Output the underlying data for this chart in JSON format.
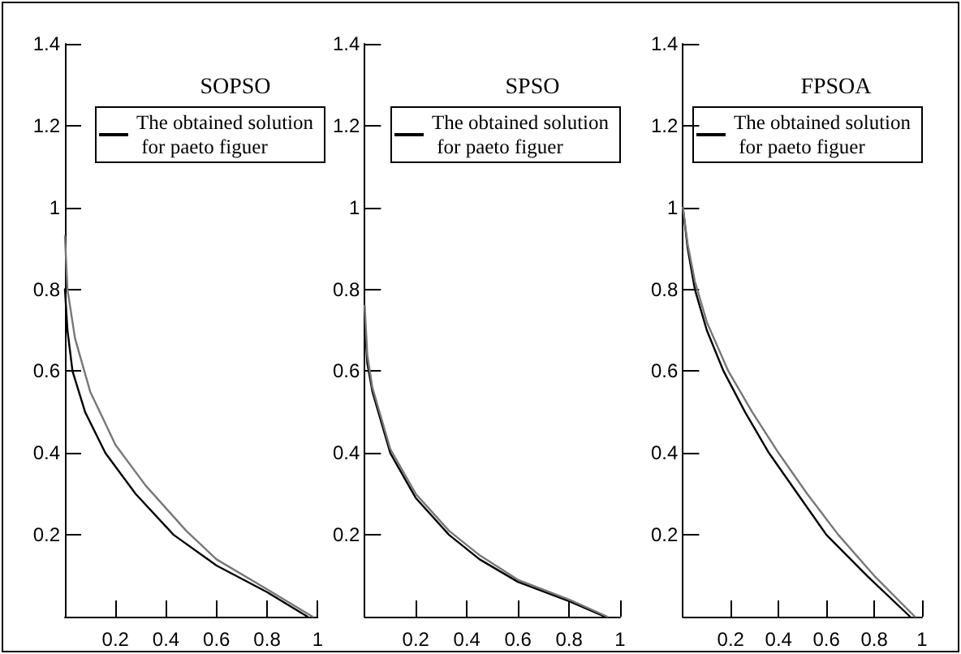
{
  "chart_data": [
    {
      "type": "line",
      "title": "SOPSO",
      "legend": "top right",
      "marker": "none",
      "line_style": "solid",
      "grid": false,
      "xlim": [
        0,
        1
      ],
      "ylim": [
        0,
        1.4
      ],
      "xticks": [
        0.2,
        0.4,
        0.6,
        0.8,
        1
      ],
      "yticks": [
        0.2,
        0.4,
        0.6,
        0.8,
        1,
        1.2,
        1.4
      ],
      "series": [
        {
          "name": "The obtained solution for paeto figuer",
          "color": "#000000",
          "x": [
            0,
            0.01,
            0.03,
            0.08,
            0.16,
            0.28,
            0.43,
            0.6,
            0.8,
            0.96
          ],
          "values": [
            0.8,
            0.7,
            0.6,
            0.5,
            0.4,
            0.3,
            0.2,
            0.125,
            0.06,
            0
          ]
        },
        {
          "color": "#777777",
          "x": [
            0,
            0.01,
            0.04,
            0.1,
            0.2,
            0.32,
            0.48,
            0.6,
            0.8,
            0.98
          ],
          "values": [
            0.93,
            0.8,
            0.68,
            0.55,
            0.42,
            0.32,
            0.21,
            0.14,
            0.067,
            0
          ]
        }
      ]
    },
    {
      "type": "line",
      "title": "SPSO",
      "legend": "top right",
      "marker": "none",
      "line_style": "solid",
      "grid": false,
      "xlim": [
        0,
        1
      ],
      "ylim": [
        0,
        1.4
      ],
      "xticks": [
        0.2,
        0.4,
        0.6,
        0.8,
        1
      ],
      "yticks": [
        0.2,
        0.4,
        0.6,
        0.8,
        1,
        1.2,
        1.4
      ],
      "series": [
        {
          "name": "The obtained solution for paeto figuer",
          "color": "#000000",
          "x": [
            0,
            0.01,
            0.03,
            0.1,
            0.2,
            0.33,
            0.45,
            0.6,
            0.8,
            0.94
          ],
          "values": [
            0.72,
            0.62,
            0.55,
            0.4,
            0.29,
            0.2,
            0.14,
            0.085,
            0.038,
            0
          ]
        },
        {
          "color": "#777777",
          "x": [
            0,
            0.01,
            0.03,
            0.1,
            0.2,
            0.33,
            0.45,
            0.6,
            0.8,
            0.95
          ],
          "values": [
            0.76,
            0.64,
            0.56,
            0.41,
            0.3,
            0.21,
            0.15,
            0.09,
            0.042,
            0
          ]
        }
      ]
    },
    {
      "type": "line",
      "title": "FPSOA",
      "legend": "top right",
      "marker": "none",
      "line_style": "solid",
      "grid": false,
      "xlim": [
        0,
        1
      ],
      "ylim": [
        0,
        1.4
      ],
      "xticks": [
        0.2,
        0.4,
        0.6,
        0.8,
        1
      ],
      "yticks": [
        0.2,
        0.4,
        0.6,
        0.8,
        1,
        1.2,
        1.4
      ],
      "series": [
        {
          "name": "The obtained solution for paeto figuer",
          "color": "#000000",
          "x": [
            0,
            0.02,
            0.05,
            0.1,
            0.17,
            0.26,
            0.36,
            0.48,
            0.6,
            0.77,
            0.95
          ],
          "values": [
            1,
            0.9,
            0.8,
            0.7,
            0.6,
            0.5,
            0.4,
            0.3,
            0.2,
            0.1,
            0
          ]
        },
        {
          "color": "#777777",
          "x": [
            0,
            0.02,
            0.05,
            0.1,
            0.19,
            0.29,
            0.4,
            0.52,
            0.65,
            0.8,
            0.97
          ],
          "values": [
            1,
            0.91,
            0.82,
            0.72,
            0.6,
            0.5,
            0.4,
            0.3,
            0.2,
            0.1,
            0
          ]
        }
      ]
    }
  ]
}
